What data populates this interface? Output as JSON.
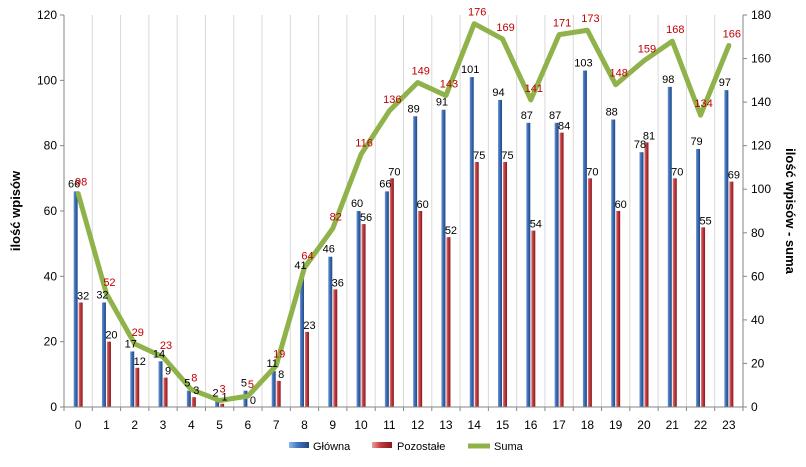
{
  "chart_data": {
    "type": "bar",
    "categories": [
      "0",
      "1",
      "2",
      "3",
      "4",
      "5",
      "6",
      "7",
      "8",
      "9",
      "10",
      "11",
      "12",
      "13",
      "14",
      "15",
      "16",
      "17",
      "18",
      "19",
      "20",
      "21",
      "22",
      "23"
    ],
    "series": [
      {
        "name": "Główna",
        "type": "bar",
        "axis": "left",
        "color": "#2e5d9f",
        "values": [
          66,
          32,
          17,
          14,
          5,
          2,
          5,
          11,
          41,
          46,
          60,
          66,
          89,
          91,
          101,
          94,
          87,
          87,
          103,
          88,
          78,
          98,
          79,
          97
        ]
      },
      {
        "name": "Pozostałe",
        "type": "bar",
        "axis": "left",
        "color": "#b83236",
        "values": [
          32,
          20,
          12,
          9,
          3,
          1,
          0,
          8,
          23,
          36,
          56,
          70,
          60,
          52,
          75,
          75,
          54,
          84,
          70,
          60,
          81,
          70,
          55,
          69
        ]
      },
      {
        "name": "Suma",
        "type": "line",
        "axis": "right",
        "color": "#8fb34a",
        "values": [
          98,
          52,
          29,
          23,
          8,
          3,
          5,
          19,
          64,
          82,
          116,
          136,
          149,
          143,
          176,
          169,
          141,
          171,
          173,
          148,
          159,
          168,
          134,
          166
        ]
      }
    ],
    "ylabel": "ilość wpisów",
    "y2label": "ilość wpisów - suma",
    "ylim": [
      0,
      120
    ],
    "y2lim": [
      0,
      180
    ],
    "yticks": [
      0,
      20,
      40,
      60,
      80,
      100,
      120
    ],
    "y2ticks": [
      0,
      20,
      40,
      60,
      80,
      100,
      120,
      140,
      160,
      180
    ],
    "grid": "vertical",
    "legend": "bottom"
  }
}
